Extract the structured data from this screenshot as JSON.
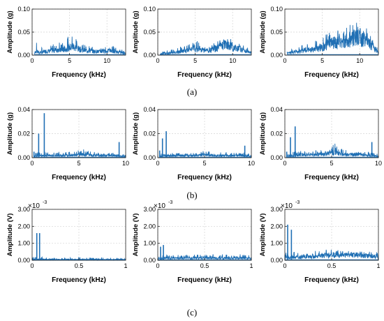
{
  "captions": {
    "a": "(a)",
    "b": "(b)",
    "c": "(c)"
  },
  "rows": [
    {
      "xlabel": "Frequency (kHz)",
      "ylabel": "Amplitude (g)",
      "xlim": [
        0,
        12.5
      ],
      "ylim": [
        0,
        0.1
      ],
      "xticks": [
        0,
        5,
        10
      ],
      "xtick_labels": [
        "0",
        "5",
        "10"
      ],
      "yticks": [
        0,
        0.05,
        0.1
      ],
      "ytick_labels": [
        "0.00",
        "0.05",
        "0.10"
      ],
      "multiplier": ""
    },
    {
      "xlabel": "Frequency (kHz)",
      "ylabel": "Amplitude (g)",
      "xlim": [
        0,
        10
      ],
      "ylim": [
        0,
        0.04
      ],
      "xticks": [
        0,
        5,
        10
      ],
      "xtick_labels": [
        "0",
        "5",
        "10"
      ],
      "yticks": [
        0,
        0.02,
        0.04
      ],
      "ytick_labels": [
        "0.00",
        "0.02",
        "0.04"
      ],
      "multiplier": ""
    },
    {
      "xlabel": "Frequency (kHz)",
      "ylabel": "Amplitude (V)",
      "xlim": [
        0,
        1
      ],
      "ylim": [
        0,
        3
      ],
      "xticks": [
        0,
        0.5,
        1
      ],
      "xtick_labels": [
        "0",
        "0.5",
        "1"
      ],
      "yticks": [
        0,
        1,
        2,
        3
      ],
      "ytick_labels": [
        "0.00",
        "1.00",
        "2.00",
        "3.00"
      ],
      "multiplier": "×10",
      "multiplier_exp": "-3"
    }
  ],
  "chart_data": [
    {
      "type": "line",
      "row": 0,
      "col": 0,
      "color": "#1f6fb4",
      "xlabel": "Frequency (kHz)",
      "ylabel": "Amplitude (g)",
      "xlim": [
        0,
        12.5
      ],
      "ylim": [
        0,
        0.1
      ],
      "x": [
        0.3,
        0.5,
        1.0,
        2.0,
        2.8,
        3.2,
        4.0,
        4.8,
        5.2,
        5.5,
        5.8,
        6.3,
        7.0,
        8.0,
        9.0,
        10.0,
        10.5,
        11.0,
        12.0,
        12.5
      ],
      "baseline": [
        0.004,
        0.01,
        0.006,
        0.01,
        0.011,
        0.013,
        0.012,
        0.018,
        0.02,
        0.022,
        0.019,
        0.015,
        0.012,
        0.01,
        0.009,
        0.01,
        0.011,
        0.008,
        0.006,
        0.004
      ],
      "peaks": [
        0.012,
        0.03,
        0.015,
        0.02,
        0.028,
        0.025,
        0.03,
        0.04,
        0.045,
        0.055,
        0.04,
        0.03,
        0.022,
        0.018,
        0.018,
        0.02,
        0.028,
        0.018,
        0.012,
        0.008
      ]
    },
    {
      "type": "line",
      "row": 0,
      "col": 1,
      "color": "#1f6fb4",
      "xlabel": "Frequency (kHz)",
      "ylabel": "",
      "xlim": [
        0,
        12.5
      ],
      "ylim": [
        0,
        0.1
      ],
      "x": [
        0.3,
        1.0,
        2.0,
        3.0,
        4.0,
        5.0,
        6.0,
        7.0,
        8.0,
        8.5,
        9.0,
        9.5,
        10.0,
        11.0,
        12.0,
        12.5
      ],
      "baseline": [
        0.002,
        0.004,
        0.006,
        0.008,
        0.012,
        0.015,
        0.012,
        0.01,
        0.018,
        0.022,
        0.028,
        0.025,
        0.02,
        0.015,
        0.008,
        0.005
      ],
      "peaks": [
        0.006,
        0.01,
        0.014,
        0.018,
        0.022,
        0.032,
        0.026,
        0.02,
        0.032,
        0.038,
        0.045,
        0.04,
        0.035,
        0.025,
        0.016,
        0.01
      ]
    },
    {
      "type": "line",
      "row": 0,
      "col": 2,
      "color": "#1f6fb4",
      "xlabel": "Frequency (kHz)",
      "ylabel": "",
      "xlim": [
        0,
        12.5
      ],
      "ylim": [
        0,
        0.1
      ],
      "x": [
        0.3,
        1.0,
        2.0,
        3.0,
        4.0,
        5.0,
        5.5,
        6.0,
        7.0,
        8.0,
        9.0,
        10.0,
        10.5,
        11.0,
        11.5,
        12.0,
        12.5
      ],
      "baseline": [
        0.004,
        0.008,
        0.01,
        0.012,
        0.015,
        0.02,
        0.025,
        0.03,
        0.032,
        0.035,
        0.04,
        0.045,
        0.042,
        0.035,
        0.025,
        0.015,
        0.008
      ],
      "peaks": [
        0.01,
        0.015,
        0.02,
        0.025,
        0.03,
        0.04,
        0.045,
        0.05,
        0.055,
        0.06,
        0.068,
        0.075,
        0.07,
        0.06,
        0.045,
        0.03,
        0.015
      ]
    },
    {
      "type": "line",
      "row": 1,
      "col": 0,
      "color": "#1f6fb4",
      "xlabel": "Frequency (kHz)",
      "ylabel": "Amplitude (g)",
      "xlim": [
        0,
        10
      ],
      "ylim": [
        0,
        0.04
      ],
      "x": [
        0.2,
        0.6,
        1.0,
        1.5,
        2.0,
        3.0,
        4.0,
        5.0,
        5.3,
        5.8,
        6.5,
        7.0,
        8.0,
        9.2,
        9.5,
        10.0
      ],
      "baseline": [
        0.001,
        0.002,
        0.002,
        0.002,
        0.002,
        0.002,
        0.002,
        0.003,
        0.003,
        0.003,
        0.002,
        0.002,
        0.002,
        0.002,
        0.002,
        0.001
      ],
      "peaks": [
        0.003,
        0.005,
        0.005,
        0.005,
        0.004,
        0.005,
        0.005,
        0.007,
        0.008,
        0.006,
        0.005,
        0.004,
        0.004,
        0.004,
        0.004,
        0.003
      ],
      "spikes": [
        {
          "x": 0.2,
          "y": 0.005
        },
        {
          "x": 0.7,
          "y": 0.02
        },
        {
          "x": 1.3,
          "y": 0.037
        },
        {
          "x": 9.3,
          "y": 0.013
        }
      ]
    },
    {
      "type": "line",
      "row": 1,
      "col": 1,
      "color": "#1f6fb4",
      "xlabel": "Frequency (kHz)",
      "ylabel": "",
      "xlim": [
        0,
        10
      ],
      "ylim": [
        0,
        0.04
      ],
      "x": [
        0.2,
        0.6,
        1.0,
        2.0,
        3.0,
        4.0,
        5.0,
        6.0,
        7.0,
        8.0,
        9.0,
        9.5,
        10.0
      ],
      "baseline": [
        0.001,
        0.002,
        0.002,
        0.002,
        0.002,
        0.002,
        0.003,
        0.002,
        0.002,
        0.002,
        0.002,
        0.002,
        0.001
      ],
      "peaks": [
        0.003,
        0.004,
        0.004,
        0.004,
        0.004,
        0.004,
        0.006,
        0.004,
        0.005,
        0.004,
        0.004,
        0.004,
        0.003
      ],
      "spikes": [
        {
          "x": 0.2,
          "y": 0.006
        },
        {
          "x": 0.5,
          "y": 0.016
        },
        {
          "x": 0.9,
          "y": 0.022
        },
        {
          "x": 9.3,
          "y": 0.01
        }
      ]
    },
    {
      "type": "line",
      "row": 1,
      "col": 2,
      "color": "#1f6fb4",
      "xlabel": "Frequency (kHz)",
      "ylabel": "",
      "xlim": [
        0,
        10
      ],
      "ylim": [
        0,
        0.04
      ],
      "x": [
        0.2,
        0.6,
        1.0,
        2.0,
        3.0,
        4.0,
        4.5,
        5.0,
        5.3,
        5.8,
        6.5,
        7.0,
        8.0,
        9.0,
        9.5,
        10.0
      ],
      "baseline": [
        0.001,
        0.002,
        0.002,
        0.003,
        0.003,
        0.003,
        0.004,
        0.004,
        0.005,
        0.004,
        0.003,
        0.003,
        0.003,
        0.002,
        0.002,
        0.001
      ],
      "peaks": [
        0.003,
        0.005,
        0.005,
        0.006,
        0.006,
        0.007,
        0.008,
        0.009,
        0.013,
        0.008,
        0.007,
        0.006,
        0.005,
        0.005,
        0.004,
        0.003
      ],
      "spikes": [
        {
          "x": 0.2,
          "y": 0.005
        },
        {
          "x": 0.6,
          "y": 0.017
        },
        {
          "x": 1.1,
          "y": 0.026
        },
        {
          "x": 9.3,
          "y": 0.013
        }
      ]
    },
    {
      "type": "line",
      "row": 2,
      "col": 0,
      "color": "#1f6fb4",
      "xlabel": "Frequency (kHz)",
      "ylabel": "Amplitude (V)",
      "xlim": [
        0,
        1
      ],
      "ylim": [
        0,
        3
      ],
      "x": [
        0.0,
        0.1,
        0.2,
        0.3,
        0.4,
        0.5,
        0.6,
        0.7,
        0.8,
        0.9,
        1.0
      ],
      "baseline": [
        0.05,
        0.06,
        0.06,
        0.05,
        0.05,
        0.05,
        0.05,
        0.05,
        0.05,
        0.05,
        0.05
      ],
      "peaks": [
        0.2,
        0.2,
        0.15,
        0.15,
        0.15,
        0.2,
        0.15,
        0.15,
        0.15,
        0.15,
        0.12
      ],
      "spikes": [
        {
          "x": 0.05,
          "y": 1.6
        },
        {
          "x": 0.08,
          "y": 1.6
        }
      ]
    },
    {
      "type": "line",
      "row": 2,
      "col": 1,
      "color": "#1f6fb4",
      "xlabel": "Frequency (kHz)",
      "ylabel": "",
      "xlim": [
        0,
        1
      ],
      "ylim": [
        0,
        3
      ],
      "x": [
        0.0,
        0.1,
        0.2,
        0.3,
        0.4,
        0.5,
        0.6,
        0.7,
        0.8,
        0.9,
        1.0
      ],
      "baseline": [
        0.1,
        0.15,
        0.15,
        0.15,
        0.15,
        0.15,
        0.15,
        0.15,
        0.15,
        0.15,
        0.12
      ],
      "peaks": [
        0.3,
        0.35,
        0.35,
        0.35,
        0.35,
        0.35,
        0.35,
        0.35,
        0.35,
        0.35,
        0.3
      ],
      "spikes": [
        {
          "x": 0.03,
          "y": 0.8
        },
        {
          "x": 0.06,
          "y": 0.9
        }
      ]
    },
    {
      "type": "line",
      "row": 2,
      "col": 2,
      "color": "#1f6fb4",
      "xlabel": "Frequency (kHz)",
      "ylabel": "",
      "xlim": [
        0,
        1
      ],
      "ylim": [
        0,
        3
      ],
      "x": [
        0.0,
        0.1,
        0.2,
        0.3,
        0.4,
        0.5,
        0.6,
        0.7,
        0.8,
        0.9,
        1.0
      ],
      "baseline": [
        0.15,
        0.2,
        0.25,
        0.25,
        0.3,
        0.35,
        0.35,
        0.35,
        0.35,
        0.3,
        0.25
      ],
      "peaks": [
        0.45,
        0.5,
        0.5,
        0.55,
        0.6,
        0.65,
        0.6,
        0.6,
        0.55,
        0.55,
        0.5
      ],
      "spikes": [
        {
          "x": 0.03,
          "y": 2.1
        },
        {
          "x": 0.07,
          "y": 1.8
        }
      ]
    }
  ]
}
